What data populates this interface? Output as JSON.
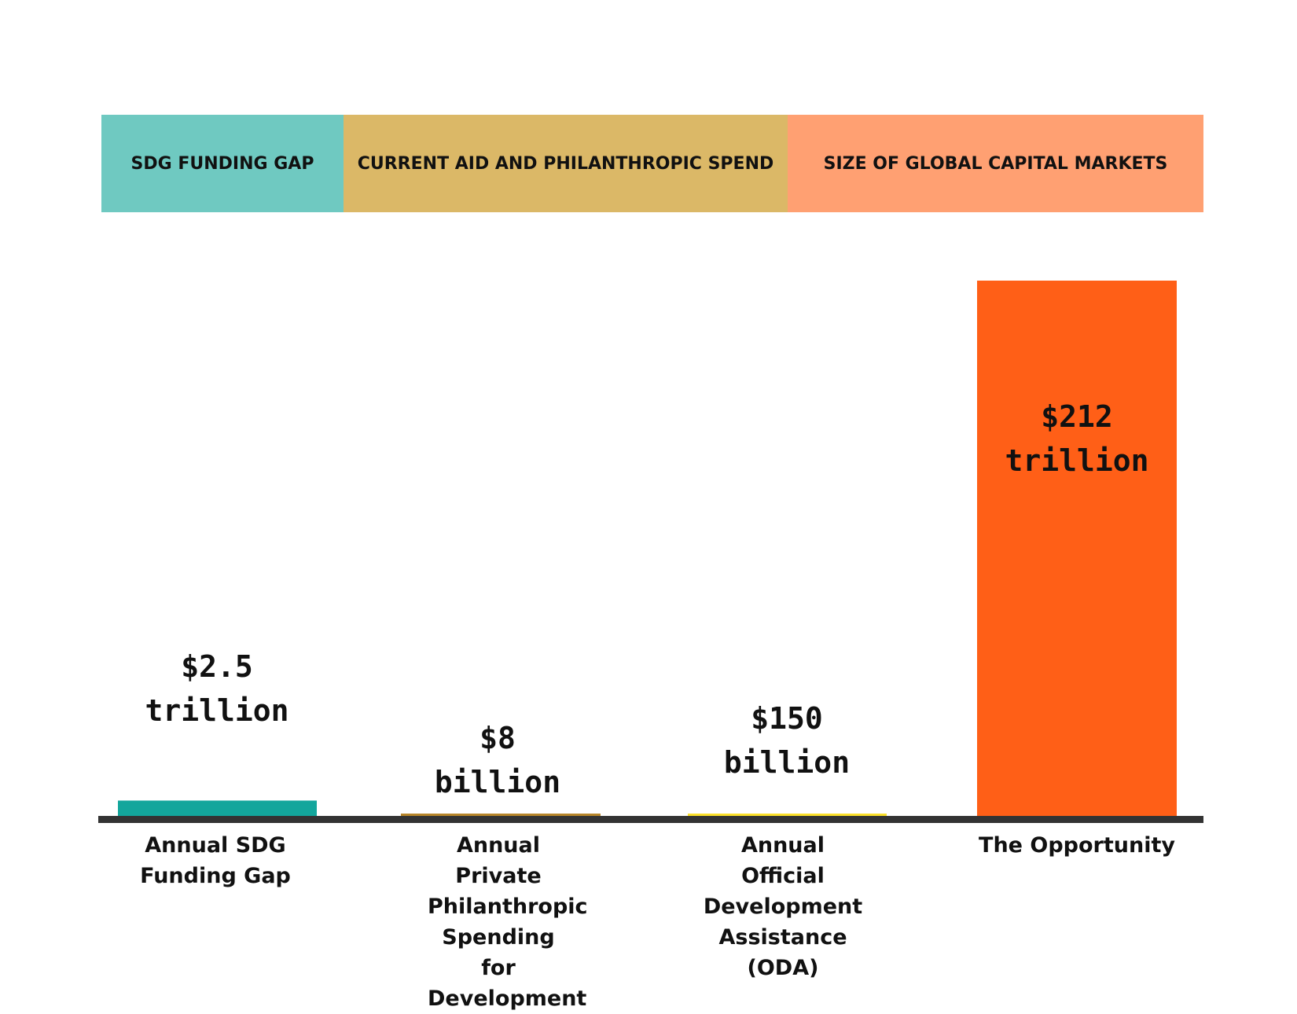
{
  "header_bands": [
    {
      "label": "SDG FUNDING GAP",
      "color": "#6fc9c1"
    },
    {
      "label": "CURRENT AID AND PHILANTHROPIC SPEND",
      "color": "#dbb867"
    },
    {
      "label": "SIZE OF GLOBAL CAPITAL MARKETS",
      "color": "#ffa072"
    }
  ],
  "chart_data": {
    "type": "bar",
    "categories": [
      "Annual SDG Funding Gap",
      "Annual Private Philanthropic Spending for Development",
      "Annual Official Development Assistance (ODA)",
      "The Opportunity"
    ],
    "values_usd_billion": [
      2500,
      8,
      150,
      212000
    ],
    "value_labels": [
      [
        "$2.5",
        "trillion"
      ],
      [
        "$8",
        "billion"
      ],
      [
        "$150",
        "billion"
      ],
      [
        "$212",
        "trillion"
      ]
    ],
    "bar_colors": [
      "#13a69c",
      "#b8862a",
      "#fbe02a",
      "#ff5f17"
    ],
    "axis_color": "#333333",
    "title": "",
    "xlabel": "",
    "ylabel": ""
  }
}
